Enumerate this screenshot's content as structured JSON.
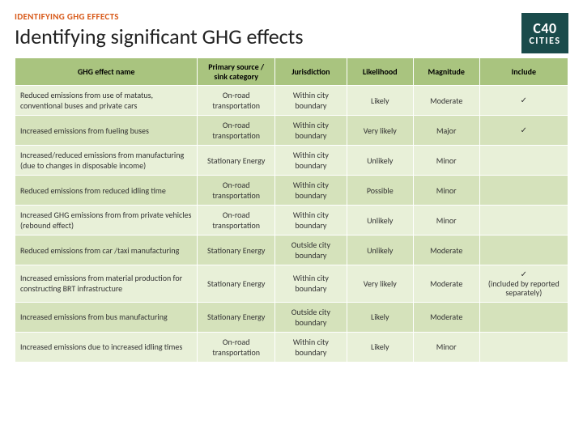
{
  "colors": {
    "accent": "#d85a1a",
    "logo_bg": "#1a4b4b",
    "header_bg": "#a9c47f",
    "row_light": "#e8f0d8",
    "row_dark": "#d5e2bb",
    "text": "#333333"
  },
  "eyebrow": "IDENTIFYING GHG EFFECTS",
  "title": "Identifying significant GHG effects",
  "logo": {
    "line1": "C40",
    "line2": "CITIES"
  },
  "table": {
    "columns": [
      "GHG effect name",
      "Primary source / sink category",
      "Jurisdiction",
      "Likelihood",
      "Magnitude",
      "Include"
    ],
    "rows": [
      {
        "effect": "Reduced emissions from use of matatus, conventional buses and private cars",
        "source": "On-road transportation",
        "jurisdiction": "Within city boundary",
        "likelihood": "Likely",
        "magnitude": "Moderate",
        "include": "✓"
      },
      {
        "effect": "Increased emissions from fueling buses",
        "source": "On-road transportation",
        "jurisdiction": "Within city boundary",
        "likelihood": "Very likely",
        "magnitude": "Major",
        "include": "✓"
      },
      {
        "effect": "Increased/reduced emissions from manufacturing (due to changes in disposable income)",
        "source": "Stationary Energy",
        "jurisdiction": "Within city boundary",
        "likelihood": "Unlikely",
        "magnitude": "Minor",
        "include": ""
      },
      {
        "effect": "Reduced emissions from reduced idling time",
        "source": "On-road transportation",
        "jurisdiction": "Within city boundary",
        "likelihood": "Possible",
        "magnitude": "Minor",
        "include": ""
      },
      {
        "effect": "Increased GHG emissions from from private vehicles (rebound effect)",
        "source": "On-road transportation",
        "jurisdiction": "Within city boundary",
        "likelihood": "Unlikely",
        "magnitude": "Minor",
        "include": ""
      },
      {
        "effect": "Reduced emissions from car /taxi manufacturing",
        "source": "Stationary Energy",
        "jurisdiction": "Outside city boundary",
        "likelihood": "Unlikely",
        "magnitude": "Moderate",
        "include": ""
      },
      {
        "effect": "Increased emissions from material production for constructing BRT infrastructure",
        "source": "Stationary Energy",
        "jurisdiction": "Within city boundary",
        "likelihood": "Very likely",
        "magnitude": "Moderate",
        "include": "✓\n(included by reported separately)"
      },
      {
        "effect": "Increased emissions from bus manufacturing",
        "source": "Stationary Energy",
        "jurisdiction": "Outside city boundary",
        "likelihood": "Likely",
        "magnitude": "Moderate",
        "include": ""
      },
      {
        "effect": "Increased emissions due to increased idling times",
        "source": "On-road transportation",
        "jurisdiction": "Within city boundary",
        "likelihood": "Likely",
        "magnitude": "Minor",
        "include": ""
      }
    ]
  }
}
